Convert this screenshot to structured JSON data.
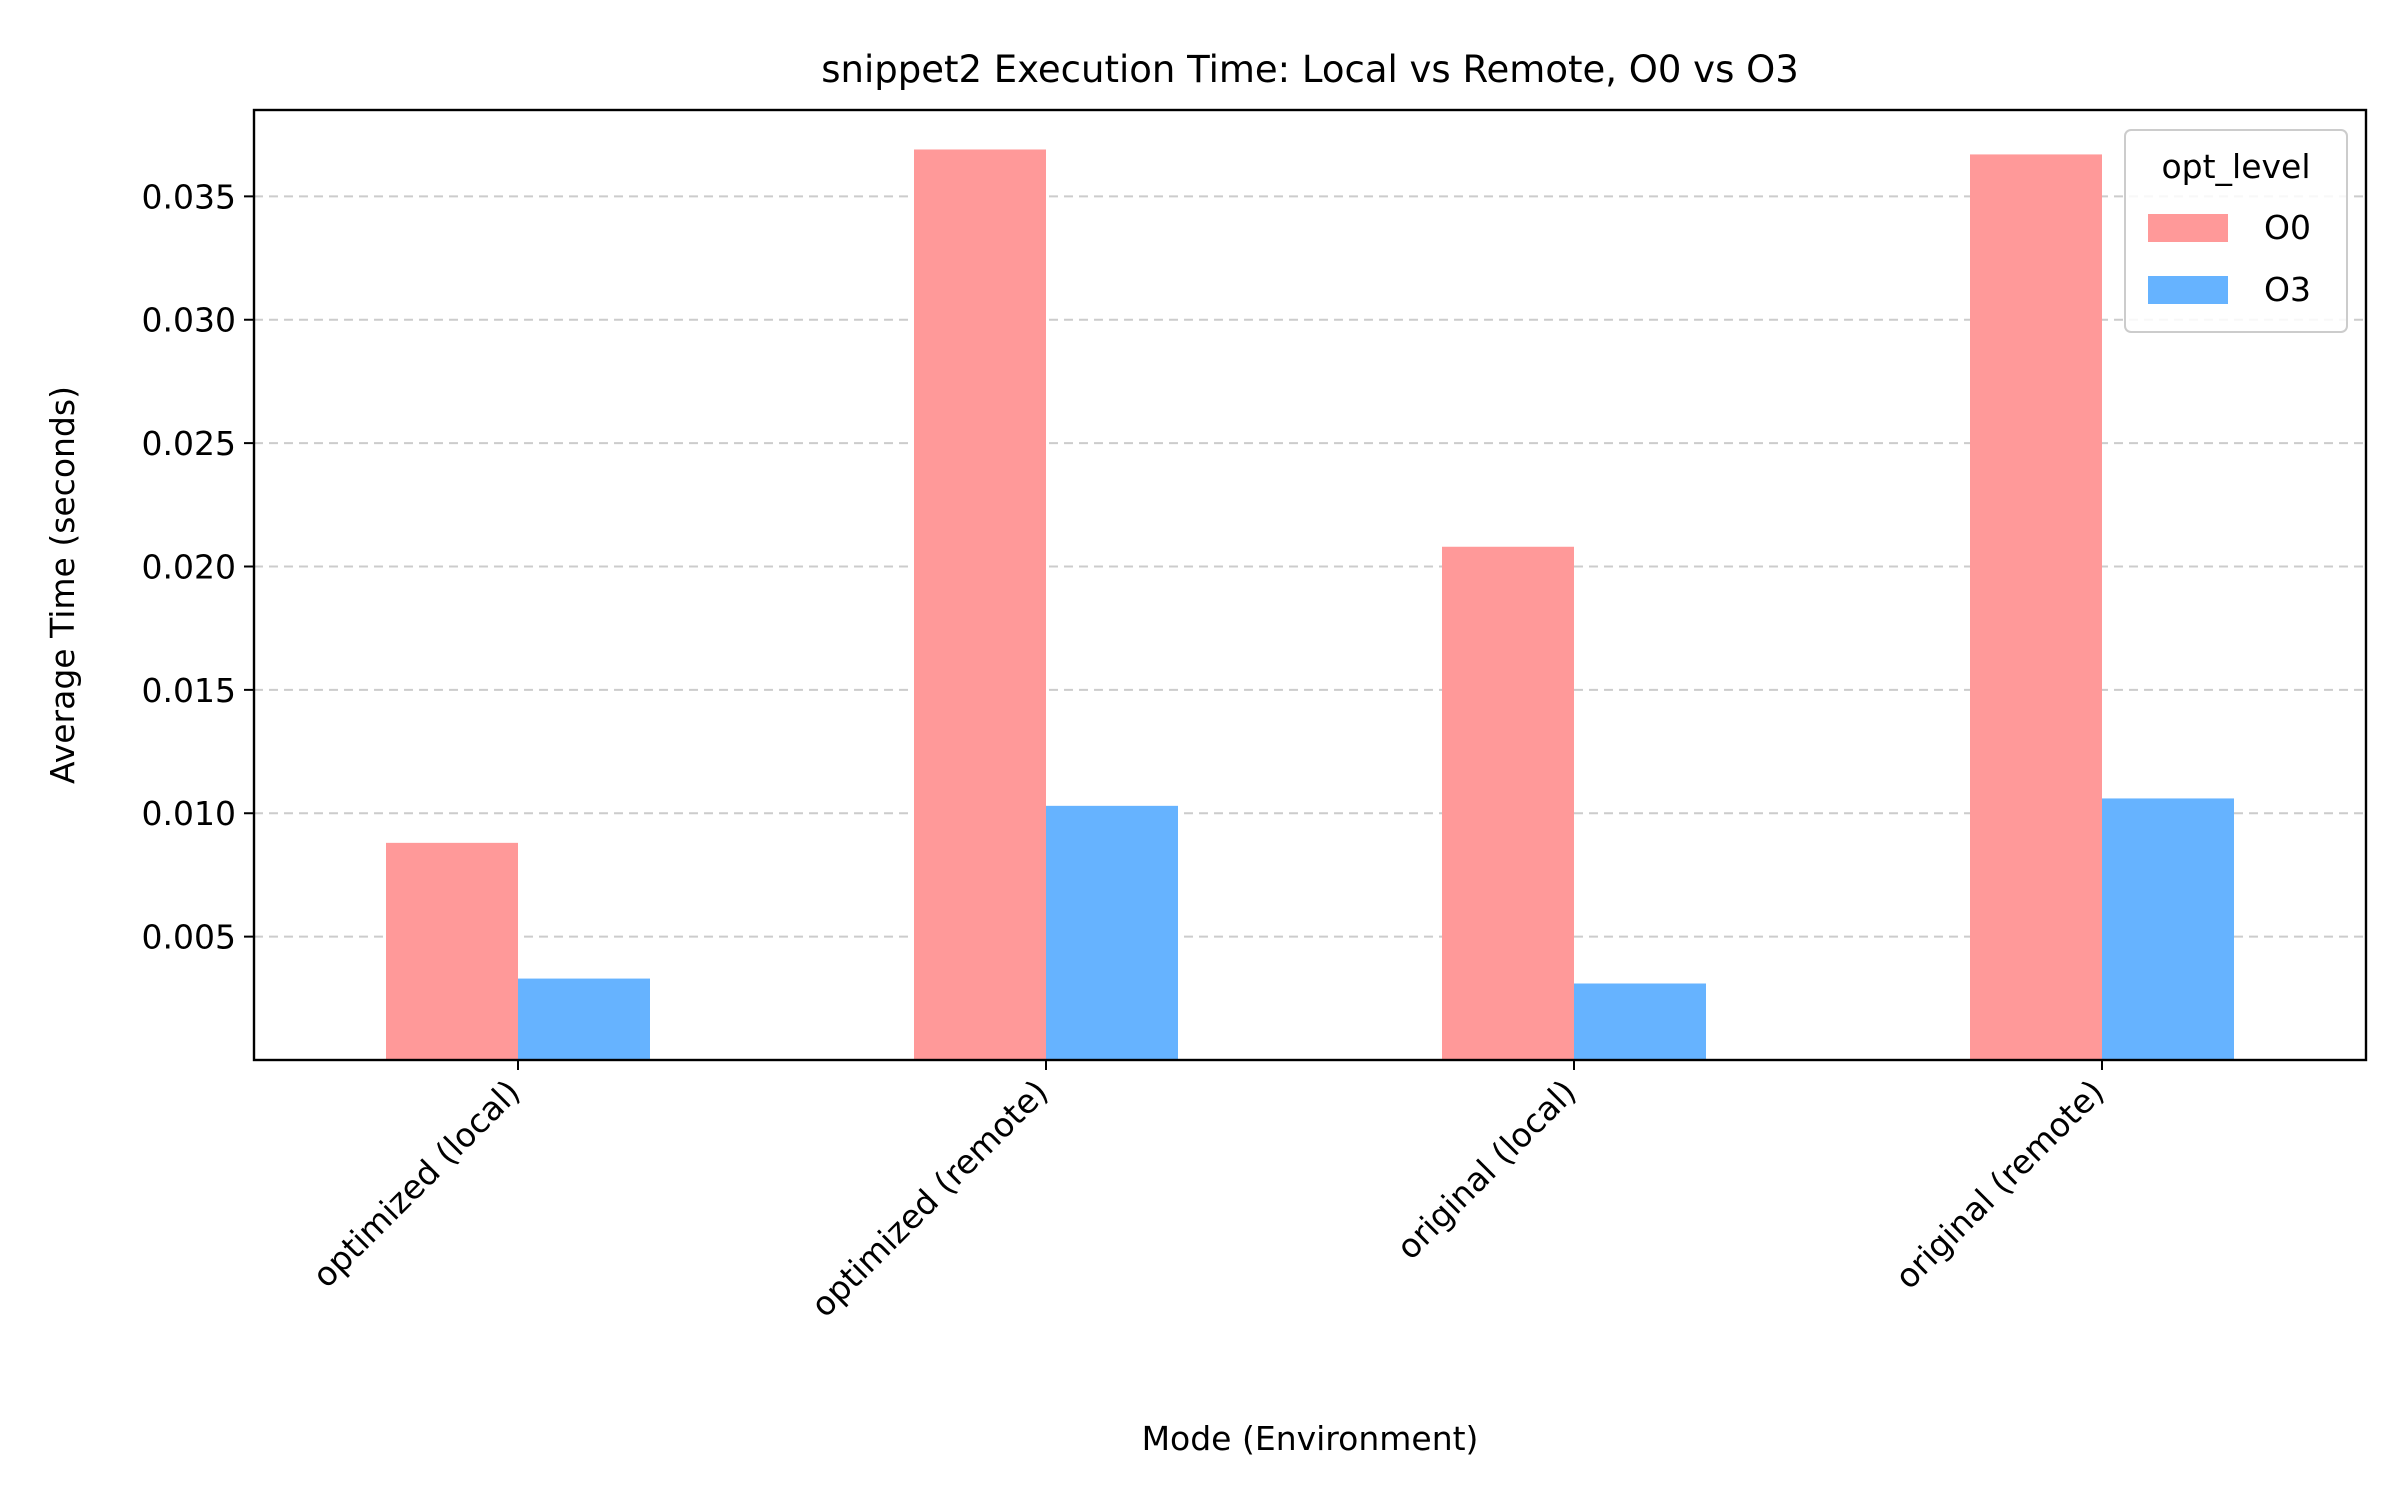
{
  "chart_data": {
    "type": "bar",
    "title": "snippet2 Execution Time: Local vs Remote, O0 vs O3",
    "xlabel": "Mode (Environment)",
    "ylabel": "Average Time (seconds)",
    "categories": [
      "optimized (local)",
      "optimized (remote)",
      "original (local)",
      "original (remote)"
    ],
    "series": [
      {
        "name": "O0",
        "color": "#ff9999",
        "values": [
          0.0088,
          0.0369,
          0.0208,
          0.0367
        ]
      },
      {
        "name": "O3",
        "color": "#66b3ff",
        "values": [
          0.0033,
          0.0103,
          0.0031,
          0.0106
        ]
      }
    ],
    "ylim": [
      0,
      0.0385
    ],
    "yticks": [
      0.005,
      0.01,
      0.015,
      0.02,
      0.025,
      0.03,
      0.035
    ],
    "ytick_labels": [
      "0.005",
      "0.010",
      "0.015",
      "0.020",
      "0.025",
      "0.030",
      "0.035"
    ],
    "grid": {
      "axis": "y",
      "style": "dashed"
    },
    "legend": {
      "title": "opt_level",
      "position": "top-right"
    }
  }
}
